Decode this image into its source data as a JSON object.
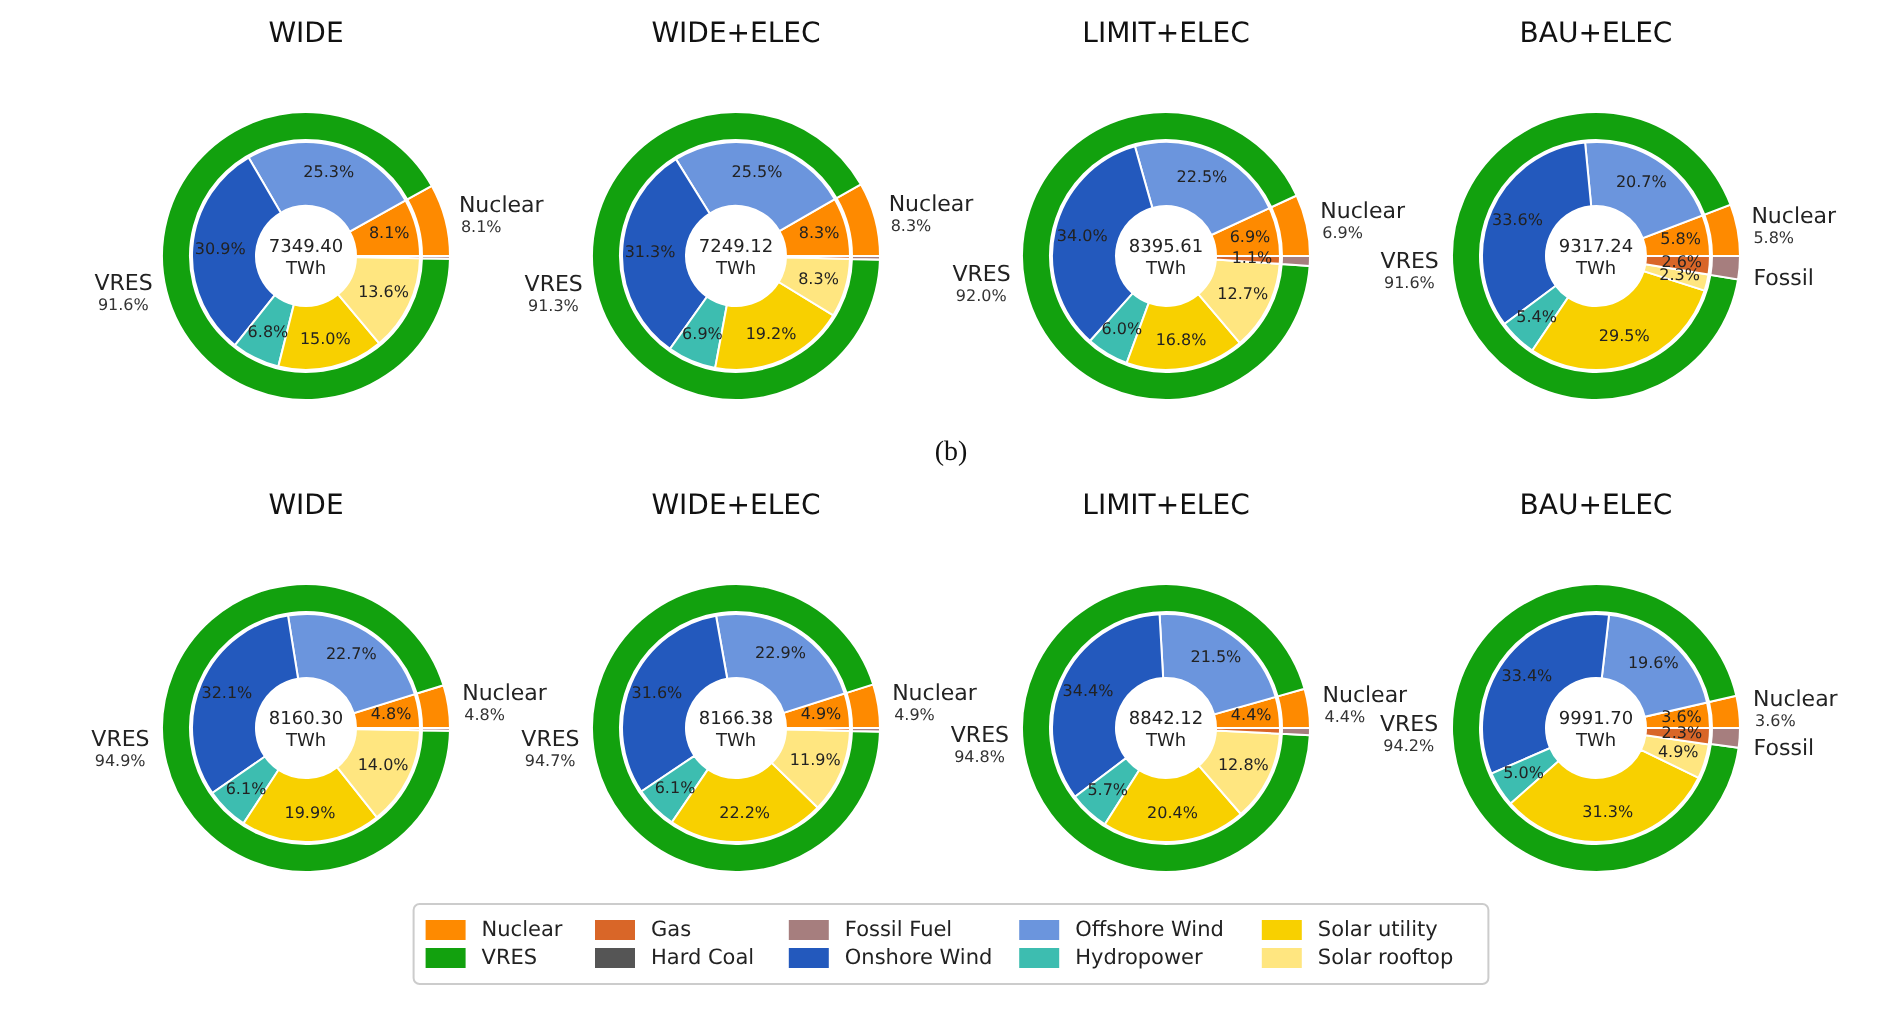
{
  "chart_data": [
    {
      "type": "donut",
      "title": "WIDE",
      "annotations": [
        "7349.40\nTWh"
      ],
      "categories": [
        "Nuclear",
        null,
        null,
        null,
        null,
        null,
        null,
        "VRES",
        null
      ],
      "series": [
        {
          "values": [
            8.1,
            null,
            null,
            null,
            null,
            null,
            null,
            91.6,
            0.3
          ],
          "colors": [
            "#fe8a00",
            null,
            null,
            null,
            null,
            null,
            null,
            "#12a10e",
            "#a67e7e"
          ],
          "value_labels": [
            "8.1%",
            null,
            null,
            null,
            null,
            null,
            null,
            "91.6%",
            null
          ]
        },
        {
          "values": [
            8.1,
            25.3,
            30.9,
            6.8,
            15.0,
            13.6,
            0.3,
            null,
            null
          ],
          "colors": [
            "#fe8a00",
            "#6b95dd",
            "#2359bd",
            "#3dbdb0",
            "#f8d000",
            "#ffe680",
            "#d96628",
            null,
            null
          ],
          "value_labels": [
            "8.1%",
            "25.3%",
            "30.9%",
            "6.8%",
            "15.0%",
            "13.6%",
            null,
            null,
            null
          ]
        }
      ]
    },
    {
      "type": "donut",
      "title": "WIDE+ELEC",
      "annotations": [
        "7249.12\nTWh"
      ],
      "categories": [
        "Nuclear",
        null,
        null,
        null,
        null,
        null,
        null,
        "VRES",
        null
      ],
      "series": [
        {
          "values": [
            8.3,
            null,
            null,
            null,
            null,
            null,
            null,
            91.3,
            0.4
          ],
          "colors": [
            "#fe8a00",
            null,
            null,
            null,
            null,
            null,
            null,
            "#12a10e",
            "#a67e7e"
          ],
          "value_labels": [
            "8.3%",
            null,
            null,
            null,
            null,
            null,
            null,
            "91.3%",
            null
          ]
        },
        {
          "values": [
            8.3,
            25.5,
            31.3,
            6.9,
            19.2,
            8.3,
            0.4,
            null,
            null
          ],
          "colors": [
            "#fe8a00",
            "#6b95dd",
            "#2359bd",
            "#3dbdb0",
            "#f8d000",
            "#ffe680",
            "#d96628",
            null,
            null
          ],
          "value_labels": [
            "8.3%",
            "25.5%",
            "31.3%",
            "6.9%",
            "19.2%",
            "8.3%",
            null,
            null,
            null
          ]
        }
      ]
    },
    {
      "type": "donut",
      "title": "LIMIT+ELEC",
      "annotations": [
        "8395.61\nTWh"
      ],
      "categories": [
        "Nuclear",
        null,
        null,
        null,
        null,
        null,
        null,
        "VRES",
        null
      ],
      "series": [
        {
          "values": [
            6.9,
            null,
            null,
            null,
            null,
            null,
            null,
            92.0,
            1.1
          ],
          "colors": [
            "#fe8a00",
            null,
            null,
            null,
            null,
            null,
            null,
            "#12a10e",
            "#a67e7e"
          ],
          "value_labels": [
            "6.9%",
            null,
            null,
            null,
            null,
            null,
            null,
            "92.0%",
            null
          ]
        },
        {
          "values": [
            6.9,
            22.5,
            34.0,
            6.0,
            16.8,
            12.7,
            1.1,
            null,
            null
          ],
          "colors": [
            "#fe8a00",
            "#6b95dd",
            "#2359bd",
            "#3dbdb0",
            "#f8d000",
            "#ffe680",
            "#d96628",
            null,
            null
          ],
          "value_labels": [
            "6.9%",
            "22.5%",
            "34.0%",
            "6.0%",
            "16.8%",
            "12.7%",
            "1.1%",
            null,
            null
          ]
        }
      ]
    },
    {
      "type": "donut",
      "title": "BAU+ELEC",
      "annotations": [
        "9317.24\nTWh"
      ],
      "categories": [
        "Nuclear",
        null,
        null,
        null,
        null,
        null,
        null,
        "VRES",
        "Fossil"
      ],
      "series": [
        {
          "values": [
            5.8,
            null,
            null,
            null,
            null,
            null,
            null,
            91.6,
            2.6
          ],
          "colors": [
            "#fe8a00",
            null,
            null,
            null,
            null,
            null,
            null,
            "#12a10e",
            "#a67e7e"
          ],
          "value_labels": [
            "5.8%",
            null,
            null,
            null,
            null,
            null,
            null,
            "91.6%",
            null
          ]
        },
        {
          "values": [
            5.8,
            20.7,
            33.6,
            5.4,
            29.5,
            2.3,
            2.6,
            null,
            null
          ],
          "colors": [
            "#fe8a00",
            "#6b95dd",
            "#2359bd",
            "#3dbdb0",
            "#f8d000",
            "#ffe680",
            "#d96628",
            null,
            null
          ],
          "value_labels": [
            "5.8%",
            "20.7%",
            "33.6%",
            "5.4%",
            "29.5%",
            "2.3%",
            "2.6%",
            null,
            null
          ]
        }
      ]
    },
    {
      "type": "donut",
      "title": "WIDE",
      "annotations": [
        "8160.30\nTWh"
      ],
      "categories": [
        "Nuclear",
        null,
        null,
        null,
        null,
        null,
        null,
        "VRES",
        null
      ],
      "series": [
        {
          "values": [
            4.8,
            null,
            null,
            null,
            null,
            null,
            null,
            94.9,
            0.3
          ],
          "colors": [
            "#fe8a00",
            null,
            null,
            null,
            null,
            null,
            null,
            "#12a10e",
            "#a67e7e"
          ],
          "value_labels": [
            "4.8%",
            null,
            null,
            null,
            null,
            null,
            null,
            "94.9%",
            null
          ]
        },
        {
          "values": [
            4.8,
            22.7,
            32.1,
            6.1,
            19.9,
            14.0,
            0.3,
            null,
            null
          ],
          "colors": [
            "#fe8a00",
            "#6b95dd",
            "#2359bd",
            "#3dbdb0",
            "#f8d000",
            "#ffe680",
            "#d96628",
            null,
            null
          ],
          "value_labels": [
            "4.8%",
            "22.7%",
            "32.1%",
            "6.1%",
            "19.9%",
            "14.0%",
            null,
            null,
            null
          ]
        }
      ]
    },
    {
      "type": "donut",
      "title": "WIDE+ELEC",
      "annotations": [
        "8166.38\nTWh"
      ],
      "categories": [
        "Nuclear",
        null,
        null,
        null,
        null,
        null,
        null,
        "VRES",
        null
      ],
      "series": [
        {
          "values": [
            4.9,
            null,
            null,
            null,
            null,
            null,
            null,
            94.7,
            0.4
          ],
          "colors": [
            "#fe8a00",
            null,
            null,
            null,
            null,
            null,
            null,
            "#12a10e",
            "#a67e7e"
          ],
          "value_labels": [
            "4.9%",
            null,
            null,
            null,
            null,
            null,
            null,
            "94.7%",
            null
          ]
        },
        {
          "values": [
            4.9,
            22.9,
            31.6,
            6.1,
            22.2,
            11.9,
            0.4,
            null,
            null
          ],
          "colors": [
            "#fe8a00",
            "#6b95dd",
            "#2359bd",
            "#3dbdb0",
            "#f8d000",
            "#ffe680",
            "#d96628",
            null,
            null
          ],
          "value_labels": [
            "4.9%",
            "22.9%",
            "31.6%",
            "6.1%",
            "22.2%",
            "11.9%",
            null,
            null,
            null
          ]
        }
      ]
    },
    {
      "type": "donut",
      "title": "LIMIT+ELEC",
      "annotations": [
        "8842.12\nTWh"
      ],
      "categories": [
        "Nuclear",
        null,
        null,
        null,
        null,
        null,
        null,
        "VRES",
        null
      ],
      "series": [
        {
          "values": [
            4.4,
            null,
            null,
            null,
            null,
            null,
            null,
            94.8,
            0.8
          ],
          "colors": [
            "#fe8a00",
            null,
            null,
            null,
            null,
            null,
            null,
            "#12a10e",
            "#a67e7e"
          ],
          "value_labels": [
            "4.4%",
            null,
            null,
            null,
            null,
            null,
            null,
            "94.8%",
            null
          ]
        },
        {
          "values": [
            4.4,
            21.5,
            34.4,
            5.7,
            20.4,
            12.8,
            0.8,
            null,
            null
          ],
          "colors": [
            "#fe8a00",
            "#6b95dd",
            "#2359bd",
            "#3dbdb0",
            "#f8d000",
            "#ffe680",
            "#d96628",
            null,
            null
          ],
          "value_labels": [
            "4.4%",
            "21.5%",
            "34.4%",
            "5.7%",
            "20.4%",
            "12.8%",
            null,
            null,
            null
          ]
        }
      ]
    },
    {
      "type": "donut",
      "title": "BAU+ELEC",
      "annotations": [
        "9991.70\nTWh"
      ],
      "categories": [
        "Nuclear",
        null,
        null,
        null,
        null,
        null,
        null,
        "VRES",
        "Fossil"
      ],
      "series": [
        {
          "values": [
            3.6,
            null,
            null,
            null,
            null,
            null,
            null,
            94.2,
            2.2
          ],
          "colors": [
            "#fe8a00",
            null,
            null,
            null,
            null,
            null,
            null,
            "#12a10e",
            "#a67e7e"
          ],
          "value_labels": [
            "3.6%",
            null,
            null,
            null,
            null,
            null,
            null,
            "94.2%",
            null
          ]
        },
        {
          "values": [
            3.6,
            19.6,
            33.4,
            5.0,
            31.3,
            4.9,
            2.3,
            null,
            null
          ],
          "colors": [
            "#fe8a00",
            "#6b95dd",
            "#2359bd",
            "#3dbdb0",
            "#f8d000",
            "#ffe680",
            "#d96628",
            null,
            null
          ],
          "value_labels": [
            "3.6%",
            "19.6%",
            "33.4%",
            "5.0%",
            "31.3%",
            "4.9%",
            "2.3%",
            null,
            null
          ]
        }
      ]
    },
    {
      "type": "other",
      "annotations": [
        "(b)"
      ],
      "categories": [
        "Nuclear",
        "Gas",
        "Fossil Fuel",
        "Offshore Wind",
        "Solar utility",
        "VRES",
        "Hard Coal",
        "Onshore Wind",
        "Hydropower",
        "Solar rooftop"
      ],
      "colors": [
        "#fe8a00",
        "#d96628",
        "#a67e7e",
        "#6b95dd",
        "#f8d000",
        "#12a10e",
        "#555555",
        "#2359bd",
        "#3dbdb0",
        "#ffe680"
      ]
    }
  ]
}
